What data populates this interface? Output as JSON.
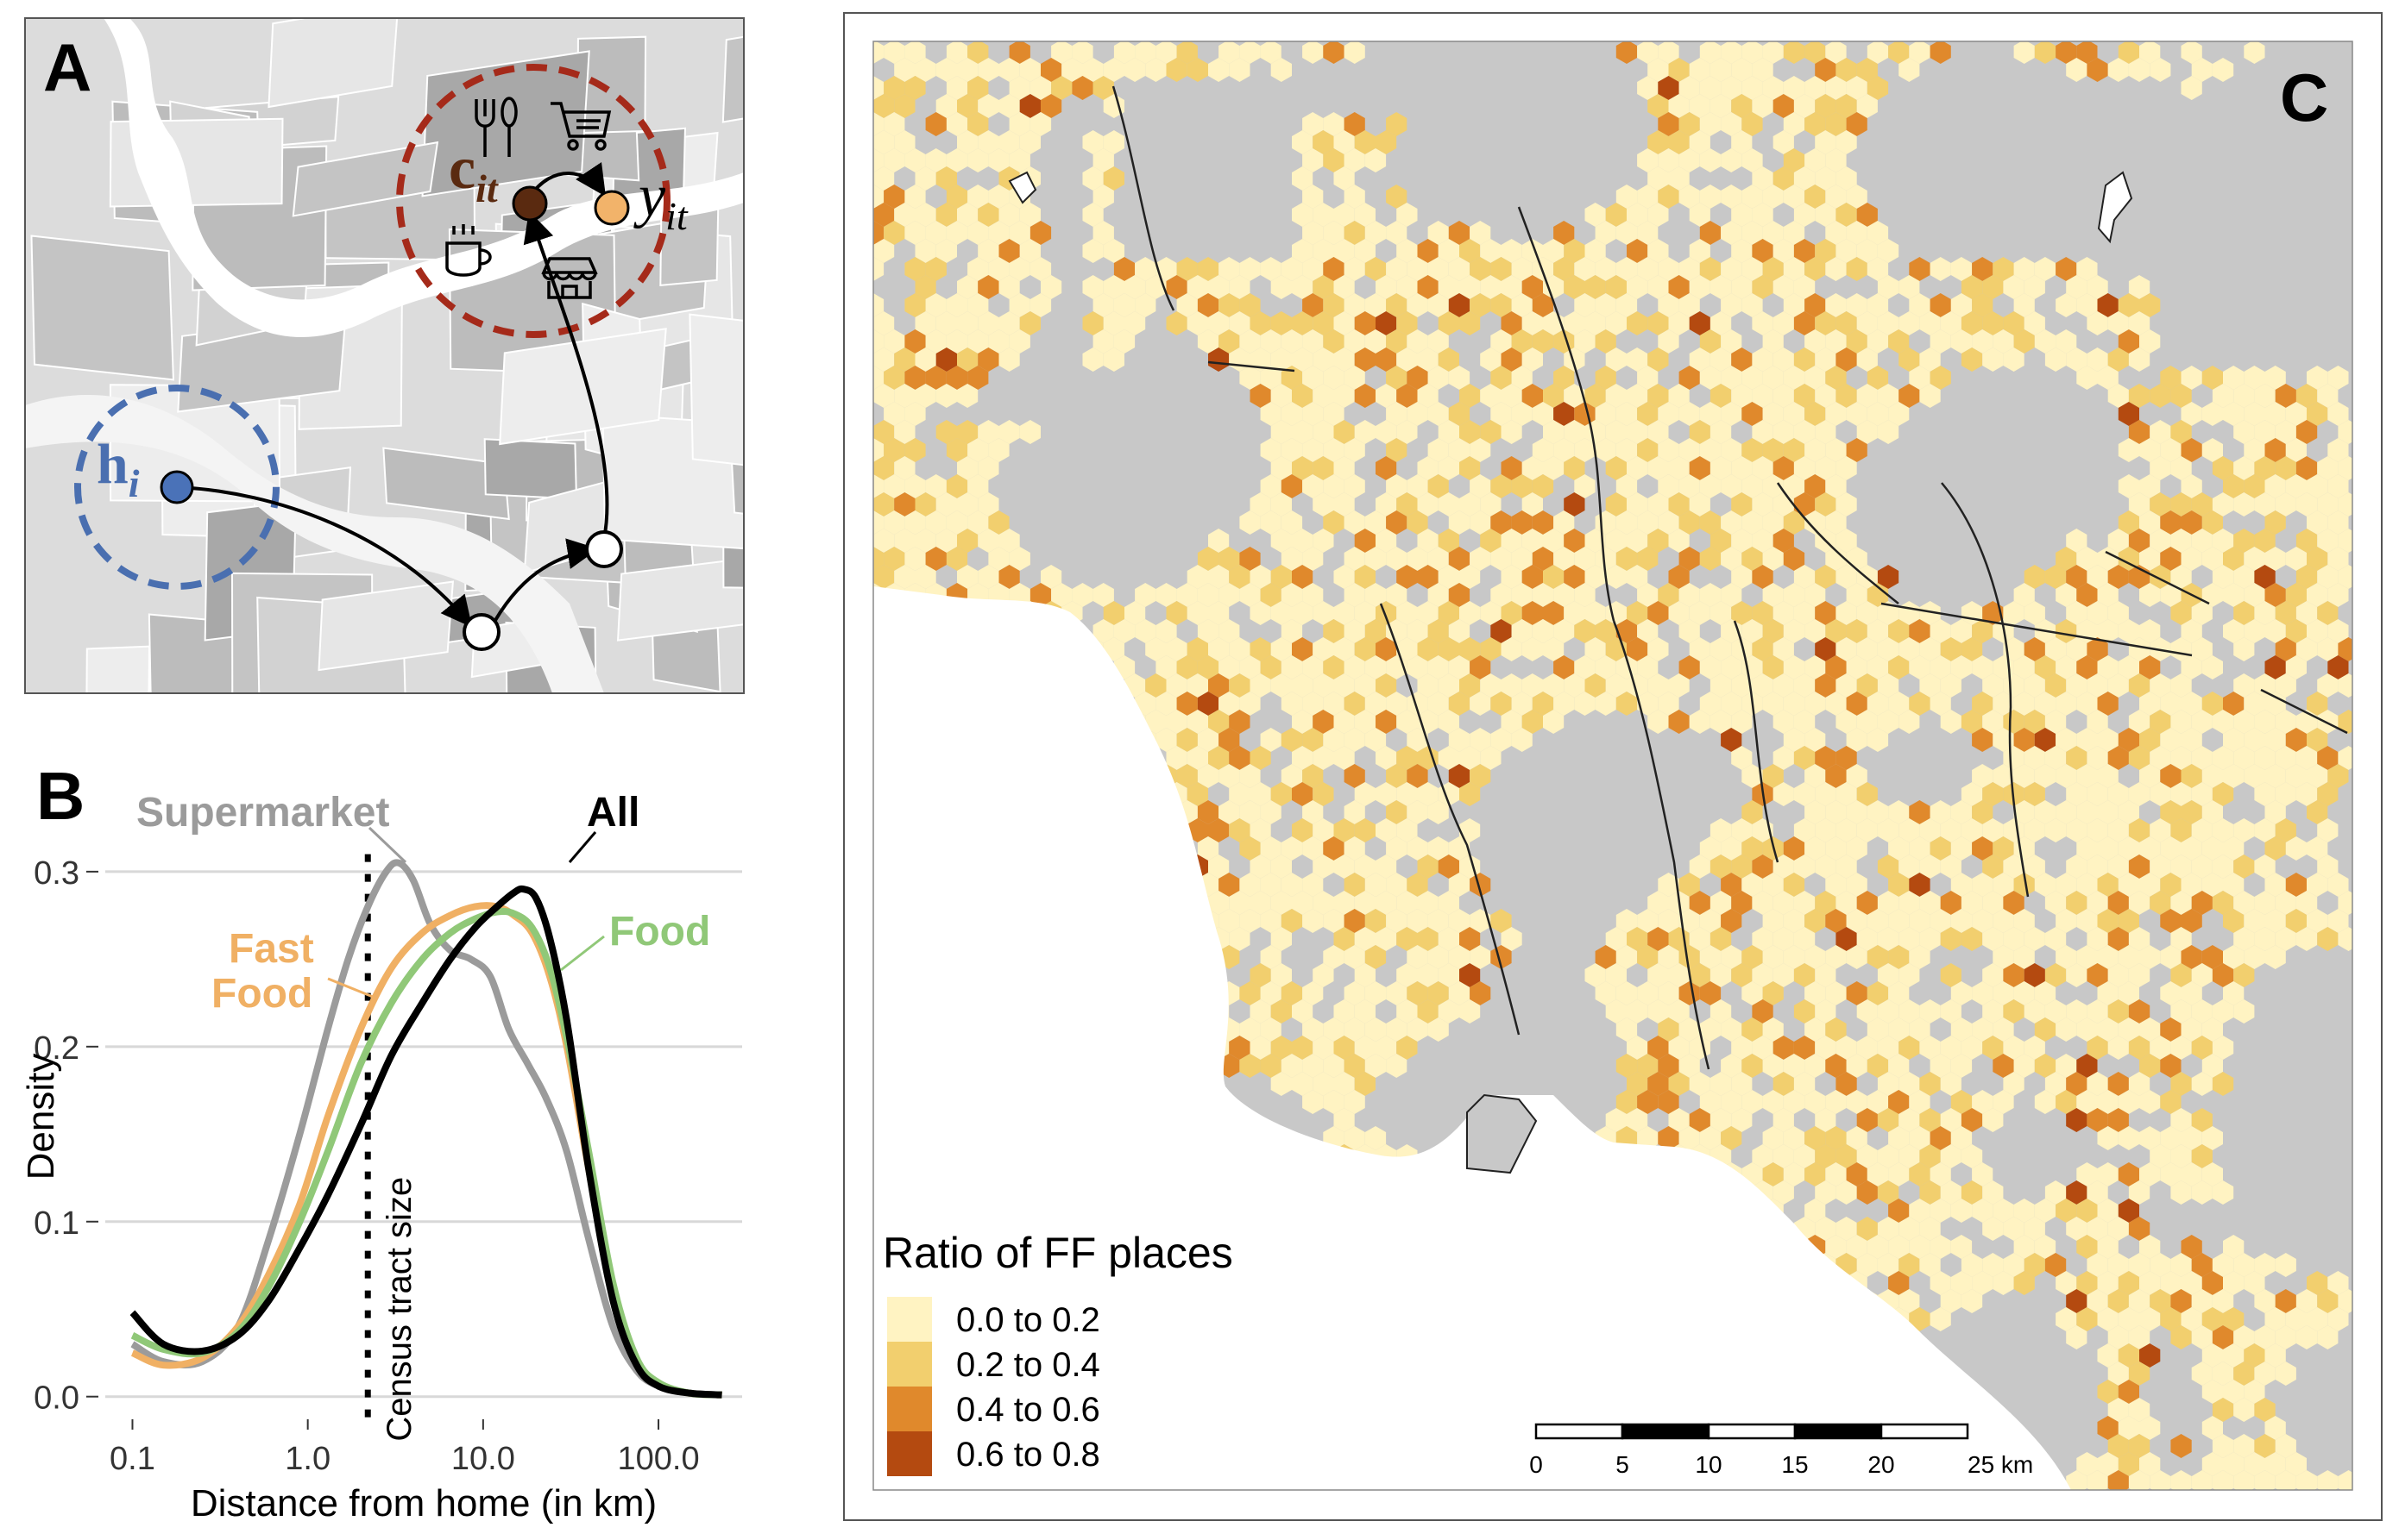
{
  "panel_a": {
    "letter": "A",
    "home_label": {
      "base": "h",
      "sub": "i"
    },
    "current_label": {
      "base": "c",
      "sub": "it"
    },
    "next_label": {
      "base": "y",
      "sub": "it"
    },
    "icons": [
      "fork-knife-icon",
      "shopping-cart-icon",
      "coffee-cup-icon",
      "storefront-icon"
    ],
    "colors": {
      "home": "#4a72b8",
      "home_ring": "#4a6fb0",
      "current": "#5a2a10",
      "next": "#f2b36a",
      "activity_ring": "#a52a1a"
    }
  },
  "panel_b": {
    "letter": "B",
    "chart_data": {
      "type": "line",
      "x_scale": "log",
      "xlabel": "Distance from home (in km)",
      "ylabel": "Density",
      "xlim": [
        0.07,
        300
      ],
      "ylim": [
        -0.01,
        0.33
      ],
      "x_ticks": [
        0.1,
        1.0,
        10.0,
        100.0
      ],
      "x_tick_labels": [
        "0.1",
        "1.0",
        "10.0",
        "100.0"
      ],
      "y_ticks": [
        0.0,
        0.1,
        0.2,
        0.3
      ],
      "y_tick_labels": [
        "0.0",
        "0.1",
        "0.2",
        "0.3"
      ],
      "grid": "horizontal",
      "vline": {
        "x": 2.2,
        "label": "Census tract size"
      },
      "series": [
        {
          "name": "Supermarket",
          "color": "#9b9b9b",
          "x": [
            0.1,
            0.15,
            0.25,
            0.4,
            0.6,
            0.9,
            1.3,
            1.7,
            2.2,
            2.8,
            3.3,
            4,
            5,
            6.5,
            8.5,
            11,
            14,
            18,
            23,
            30,
            40,
            55,
            75,
            100,
            150,
            230
          ],
          "y": [
            0.03,
            0.02,
            0.02,
            0.04,
            0.09,
            0.15,
            0.21,
            0.25,
            0.28,
            0.3,
            0.305,
            0.295,
            0.27,
            0.255,
            0.25,
            0.24,
            0.21,
            0.19,
            0.17,
            0.14,
            0.09,
            0.04,
            0.015,
            0.006,
            0.002,
            0.001
          ]
        },
        {
          "name": "Fast Food",
          "color": "#f0b064",
          "x": [
            0.1,
            0.15,
            0.25,
            0.4,
            0.6,
            0.9,
            1.3,
            2,
            3,
            4.5,
            6.5,
            9,
            12,
            15,
            19,
            24,
            30,
            40,
            55,
            75,
            100,
            150,
            230
          ],
          "y": [
            0.025,
            0.018,
            0.022,
            0.04,
            0.07,
            0.11,
            0.16,
            0.21,
            0.245,
            0.265,
            0.275,
            0.28,
            0.28,
            0.275,
            0.265,
            0.24,
            0.2,
            0.13,
            0.06,
            0.02,
            0.007,
            0.002,
            0.001
          ]
        },
        {
          "name": "Food",
          "color": "#90c878",
          "x": [
            0.1,
            0.15,
            0.25,
            0.4,
            0.6,
            0.9,
            1.3,
            2,
            3,
            4.5,
            6.5,
            9,
            12,
            15,
            19,
            24,
            30,
            40,
            55,
            75,
            100,
            150,
            230
          ],
          "y": [
            0.035,
            0.027,
            0.025,
            0.037,
            0.063,
            0.1,
            0.14,
            0.19,
            0.225,
            0.25,
            0.265,
            0.273,
            0.277,
            0.276,
            0.268,
            0.245,
            0.205,
            0.14,
            0.065,
            0.022,
            0.008,
            0.002,
            0.001
          ]
        },
        {
          "name": "All",
          "color": "#000000",
          "x": [
            0.1,
            0.15,
            0.25,
            0.4,
            0.6,
            0.9,
            1.3,
            2,
            3,
            4.5,
            6.5,
            9,
            12,
            15,
            17,
            20,
            24,
            30,
            40,
            55,
            75,
            100,
            150,
            230
          ],
          "y": [
            0.048,
            0.03,
            0.026,
            0.035,
            0.055,
            0.085,
            0.115,
            0.155,
            0.195,
            0.225,
            0.25,
            0.268,
            0.28,
            0.288,
            0.29,
            0.285,
            0.262,
            0.215,
            0.13,
            0.055,
            0.018,
            0.006,
            0.002,
            0.001
          ]
        }
      ],
      "series_labels": {
        "Supermarket": "Supermarket",
        "Fast Food": [
          "Fast",
          "Food"
        ],
        "Food": "Food",
        "All": "All"
      }
    }
  },
  "panel_c": {
    "letter": "C",
    "legend": {
      "title": "Ratio of FF places",
      "items": [
        {
          "label": "0.0 to 0.2",
          "color": "#fff3c2"
        },
        {
          "label": "0.2 to 0.4",
          "color": "#f2cf6e"
        },
        {
          "label": "0.4 to 0.6",
          "color": "#e0892c"
        },
        {
          "label": "0.6 to 0.8",
          "color": "#b44a10"
        }
      ]
    },
    "scale_bar": {
      "ticks": [
        "0",
        "5",
        "10",
        "15",
        "20",
        "25 km"
      ]
    },
    "colors": {
      "land": "#c8c8c8",
      "ocean": "#ffffff"
    }
  }
}
